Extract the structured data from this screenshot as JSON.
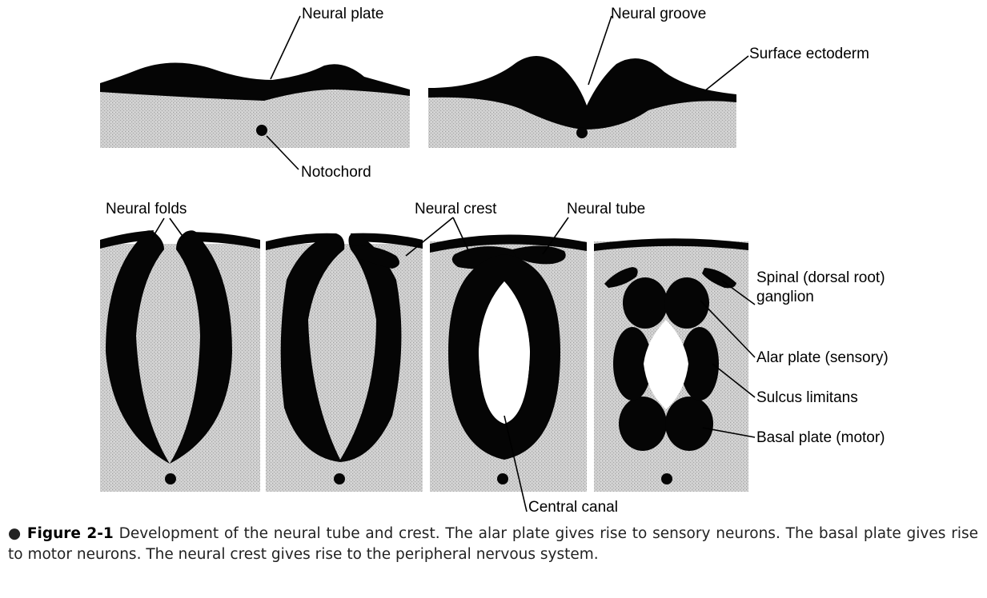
{
  "labels": {
    "neural_plate": "Neural plate",
    "neural_groove": "Neural groove",
    "surface_ectoderm": "Surface ectoderm",
    "notochord": "Notochord",
    "neural_folds": "Neural folds",
    "neural_crest": "Neural crest",
    "neural_tube": "Neural tube",
    "spinal_ganglion_line1": "Spinal (dorsal root)",
    "spinal_ganglion_line2": "ganglion",
    "alar_plate": "Alar plate (sensory)",
    "sulcus_limitans": "Sulcus limitans",
    "basal_plate": "Basal plate (motor)",
    "central_canal": "Central canal"
  },
  "caption": {
    "bullet": "●",
    "label": "Figure 2-1",
    "text": " Development of the neural tube and crest. The alar plate gives rise to sensory neurons. The basal plate gives rise to motor neurons. The neural crest gives rise to the peripheral nervous system."
  },
  "colors": {
    "ink": "#050505",
    "tissue": "#c9c9c9"
  }
}
